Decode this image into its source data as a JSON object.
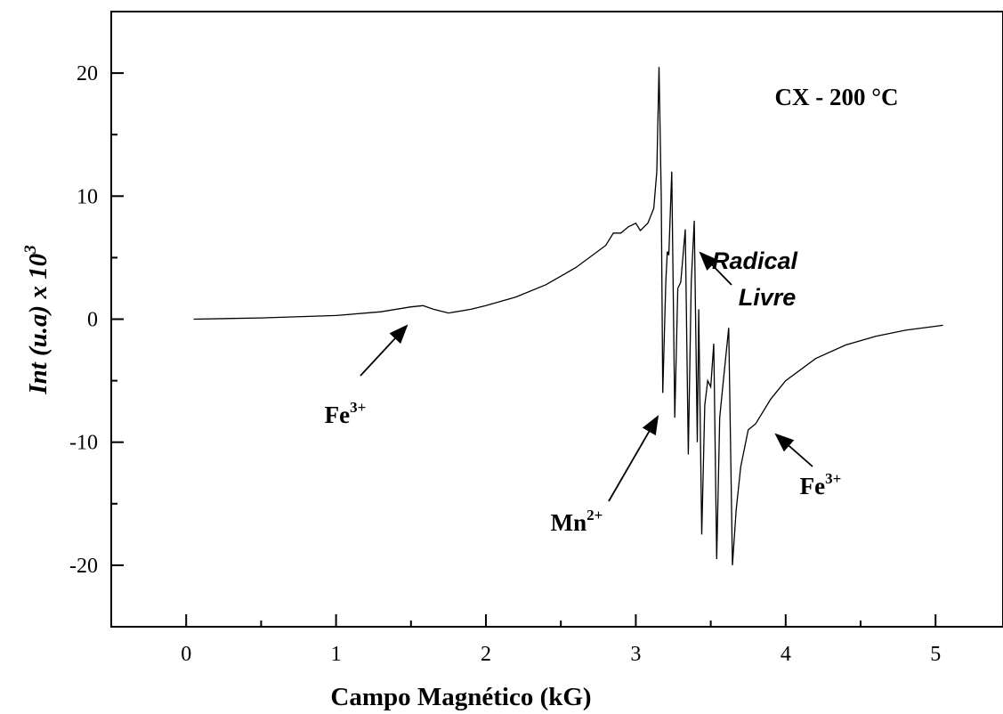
{
  "chart_data": {
    "type": "line",
    "title": "CX - 200 °C",
    "xlabel": "Campo Magnético (kG)",
    "ylabel": "Int (u.a) x 10",
    "ylabel_sup": "3",
    "xlim": [
      -0.5,
      5.45
    ],
    "ylim": [
      -25,
      25
    ],
    "xticks": [
      0,
      1,
      2,
      3,
      4,
      5
    ],
    "yticks": [
      -20,
      -10,
      0,
      10,
      20
    ],
    "color": "#000000",
    "x": [
      0.05,
      0.5,
      1.0,
      1.3,
      1.5,
      1.58,
      1.65,
      1.75,
      1.9,
      2.0,
      2.2,
      2.4,
      2.6,
      2.8,
      2.85,
      2.9,
      2.95,
      3.0,
      3.03,
      3.08,
      3.12,
      3.14,
      3.155,
      3.17,
      3.18,
      3.2,
      3.21,
      3.22,
      3.24,
      3.26,
      3.28,
      3.3,
      3.33,
      3.35,
      3.37,
      3.39,
      3.41,
      3.42,
      3.44,
      3.46,
      3.48,
      3.5,
      3.52,
      3.54,
      3.56,
      3.58,
      3.62,
      3.645,
      3.67,
      3.7,
      3.75,
      3.8,
      3.9,
      4.0,
      4.2,
      4.4,
      4.6,
      4.8,
      5.05
    ],
    "values": [
      0,
      0.1,
      0.3,
      0.6,
      1.0,
      1.1,
      0.8,
      0.5,
      0.8,
      1.1,
      1.8,
      2.8,
      4.2,
      6.0,
      7.0,
      7.0,
      7.5,
      7.8,
      7.2,
      7.8,
      9.0,
      12,
      20.5,
      10,
      -6,
      3,
      5.5,
      5.2,
      12,
      -8,
      2.5,
      3,
      7.3,
      -11,
      3,
      8,
      -10,
      0.8,
      -17.5,
      -7,
      -5,
      -5.5,
      -2,
      -19.5,
      -8,
      -5.5,
      -0.7,
      -20,
      -15.5,
      -12,
      -9,
      -8.5,
      -6.5,
      -5,
      -3.2,
      -2.1,
      -1.4,
      -0.9,
      -0.5
    ],
    "annotations": [
      {
        "text": "Fe",
        "sup": "3+"
      },
      {
        "text": "Mn",
        "sup": "2+"
      },
      {
        "text": "Radical"
      },
      {
        "text": "Livre"
      },
      {
        "text": "Fe",
        "sup": "3+"
      }
    ]
  }
}
